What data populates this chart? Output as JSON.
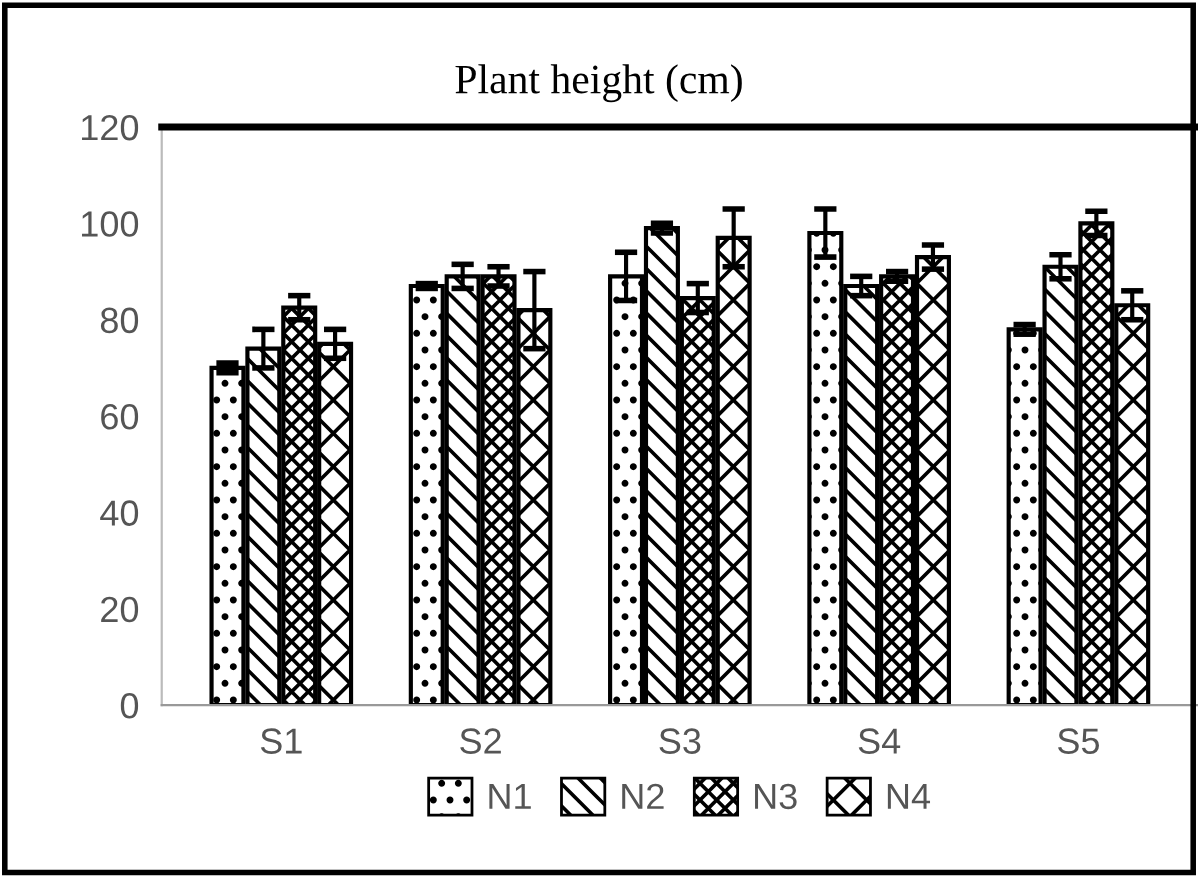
{
  "chart_data": {
    "type": "bar",
    "title": "Plant height (cm)",
    "categories": [
      "S1",
      "S2",
      "S3",
      "S4",
      "S5"
    ],
    "ylim": [
      0,
      120
    ],
    "yticks": [
      0,
      20,
      40,
      60,
      80,
      100,
      120
    ],
    "grid": false,
    "legend": "bottom",
    "series": [
      {
        "name": "N1",
        "color": "#000000",
        "values": [
          70,
          87,
          89,
          98,
          78
        ],
        "errors": [
          1,
          0.5,
          5,
          5,
          1
        ]
      },
      {
        "name": "N2",
        "color": "#000000",
        "values": [
          74,
          89,
          99,
          87,
          91
        ],
        "errors": [
          4,
          2.5,
          1,
          2,
          2.5
        ]
      },
      {
        "name": "N3",
        "color": "#000000",
        "values": [
          82.5,
          89,
          84.5,
          89,
          100
        ],
        "errors": [
          2.5,
          2,
          3,
          1,
          2.5
        ]
      },
      {
        "name": "N4",
        "color": "#000000",
        "values": [
          75,
          82,
          97,
          93,
          83
        ],
        "errors": [
          3,
          8,
          6,
          2.5,
          3
        ]
      }
    ]
  }
}
